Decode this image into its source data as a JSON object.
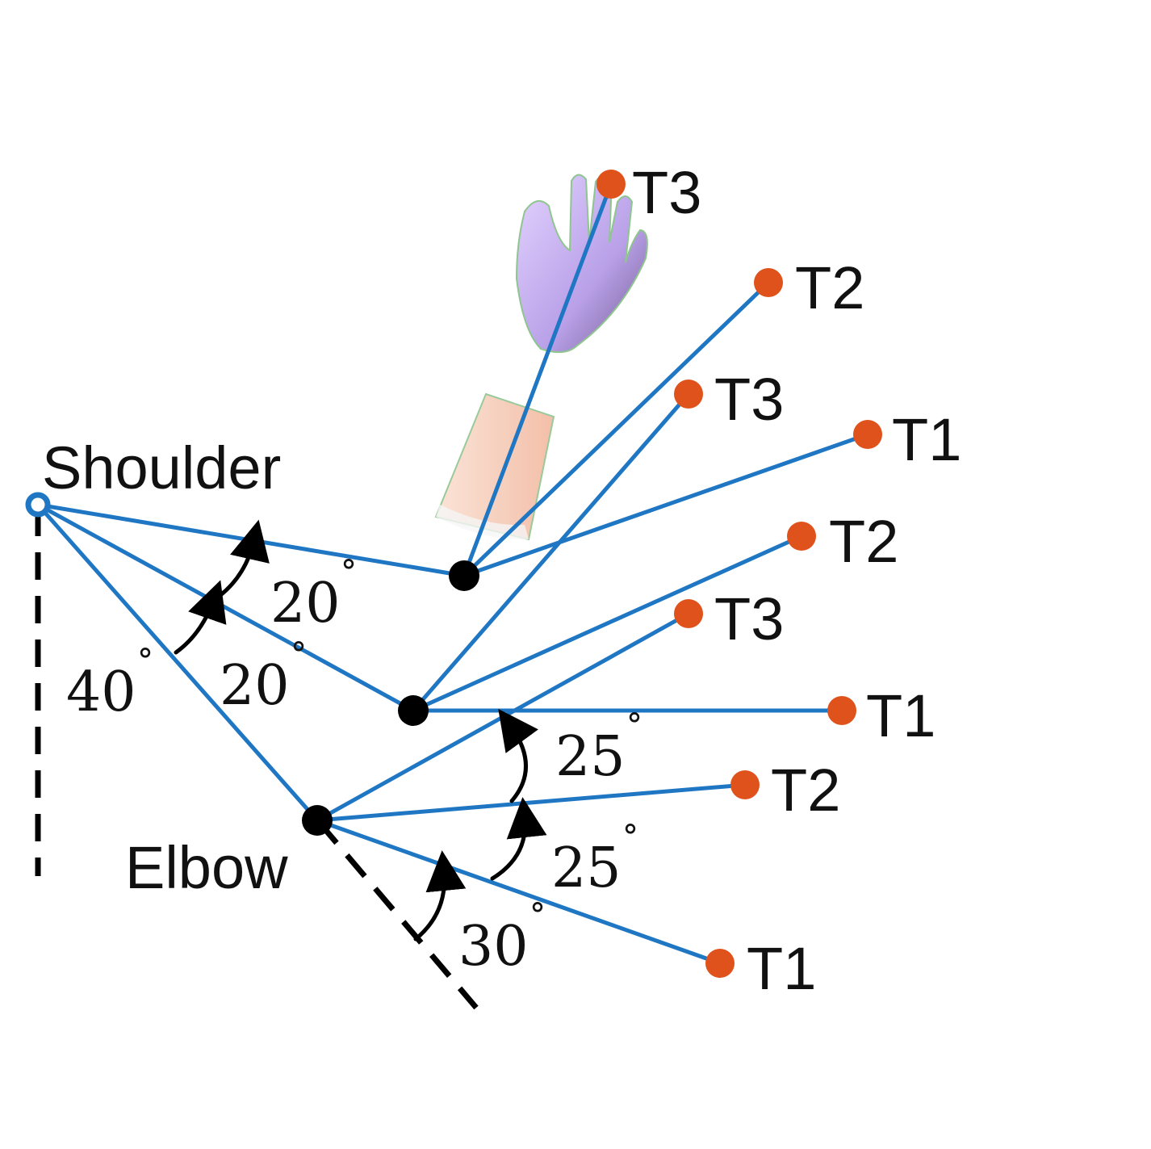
{
  "labels": {
    "shoulder": "Shoulder",
    "elbow": "Elbow"
  },
  "colors": {
    "segment": "#1f77c4",
    "target": "#e0521c",
    "joint": "#000000",
    "hand": "#c9b3f0",
    "forearm": "#f7c9b3"
  },
  "angles": [
    {
      "value": "20",
      "unit": "°"
    },
    {
      "value": "40",
      "unit": "°"
    },
    {
      "value": "20",
      "unit": "°"
    },
    {
      "value": "25",
      "unit": "°"
    },
    {
      "value": "25",
      "unit": "°"
    },
    {
      "value": "30",
      "unit": "°"
    }
  ],
  "targets": [
    {
      "label": "T3"
    },
    {
      "label": "T2"
    },
    {
      "label": "T3"
    },
    {
      "label": "T1"
    },
    {
      "label": "T2"
    },
    {
      "label": "T3"
    },
    {
      "label": "T1"
    },
    {
      "label": "T2"
    },
    {
      "label": "T1"
    }
  ]
}
